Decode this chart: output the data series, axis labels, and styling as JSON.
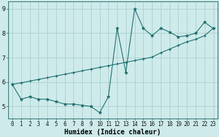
{
  "xlabel": "Humidex (Indice chaleur)",
  "bg_color": "#ceeaea",
  "grid_color": "#aacece",
  "line_color": "#1a6b6b",
  "x_data": [
    0,
    1,
    2,
    3,
    4,
    5,
    6,
    7,
    8,
    9,
    10,
    11,
    12,
    13,
    14,
    15,
    16,
    17,
    18,
    19,
    20,
    21,
    22,
    23
  ],
  "y_curve": [
    5.9,
    5.3,
    5.4,
    5.3,
    5.3,
    5.2,
    5.1,
    5.1,
    5.05,
    5.0,
    4.75,
    5.4,
    8.2,
    6.4,
    9.0,
    8.2,
    7.9,
    8.2,
    8.05,
    7.85,
    7.9,
    8.0,
    8.45,
    8.2
  ],
  "y_trend": [
    5.9,
    5.97,
    6.04,
    6.11,
    6.18,
    6.25,
    6.32,
    6.39,
    6.46,
    6.53,
    6.6,
    6.67,
    6.74,
    6.81,
    6.88,
    6.95,
    7.02,
    7.2,
    7.35,
    7.5,
    7.65,
    7.75,
    7.9,
    8.2
  ],
  "ylim": [
    4.5,
    9.3
  ],
  "yticks": [
    5,
    6,
    7,
    8,
    9
  ],
  "xticks": [
    0,
    1,
    2,
    3,
    4,
    5,
    6,
    7,
    8,
    9,
    10,
    11,
    12,
    13,
    14,
    15,
    16,
    17,
    18,
    19,
    20,
    21,
    22,
    23
  ],
  "tick_fontsize": 5.5,
  "xlabel_fontsize": 7.0
}
